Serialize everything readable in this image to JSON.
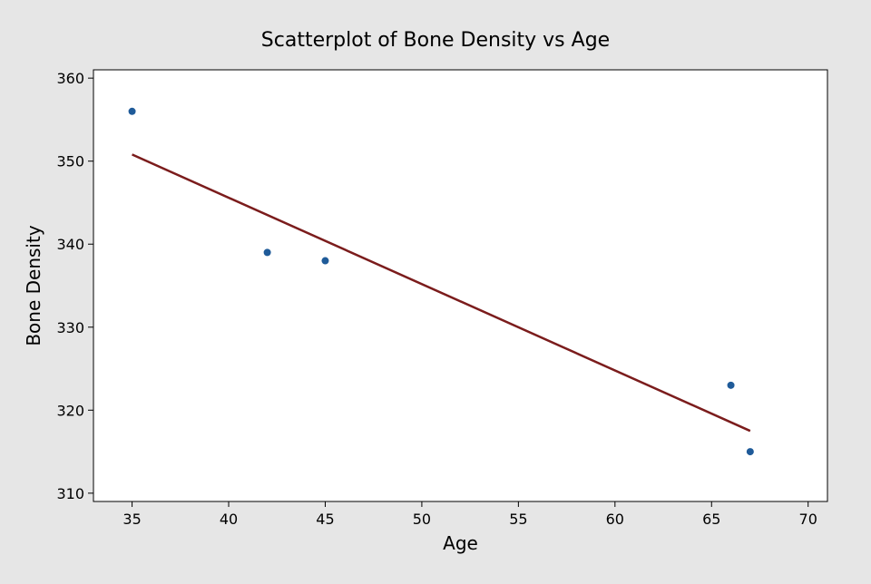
{
  "chart_data": {
    "type": "scatter",
    "title": "Scatterplot of Bone Density vs Age",
    "xlabel": "Age",
    "ylabel": "Bone Density",
    "xlim": [
      33,
      71
    ],
    "ylim": [
      309,
      361
    ],
    "xticks": [
      35,
      40,
      45,
      50,
      55,
      60,
      65,
      70
    ],
    "yticks": [
      310,
      320,
      330,
      340,
      350,
      360
    ],
    "grid": false,
    "legend": "none",
    "series": [
      {
        "type": "scatter",
        "x": [
          35,
          42,
          45,
          66,
          67
        ],
        "y": [
          356,
          339,
          338,
          323,
          315
        ],
        "color": "#1f5b99"
      },
      {
        "type": "line",
        "x": [
          35,
          67
        ],
        "y": [
          350.8,
          317.5
        ],
        "color": "#7b1c1c"
      }
    ],
    "colors": {
      "background": "#e6e6e6",
      "plot_area": "#ffffff",
      "axis": "#000000",
      "points": "#1f5b99",
      "fit_line": "#7b1c1c"
    }
  }
}
